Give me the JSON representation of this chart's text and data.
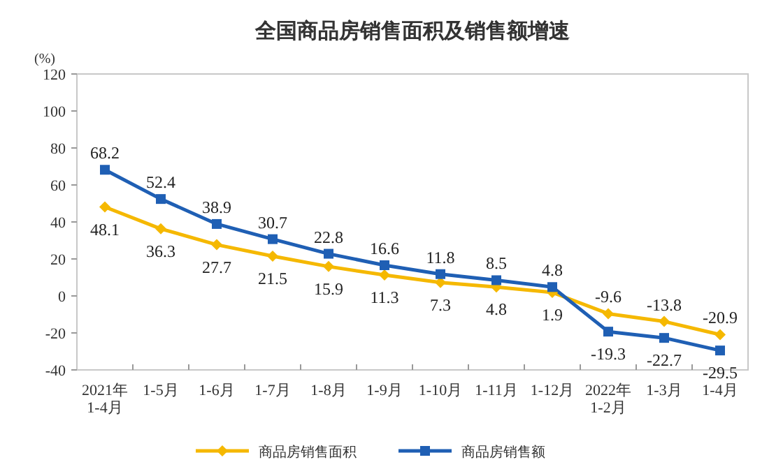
{
  "chart_data": {
    "type": "line",
    "title": "全国商品房销售面积及销售额增速",
    "ylabel": "(%)",
    "categories": [
      "2021年\n1-4月",
      "1-5月",
      "1-6月",
      "1-7月",
      "1-8月",
      "1-9月",
      "1-10月",
      "1-11月",
      "1-12月",
      "2022年\n1-2月",
      "1-3月",
      "1-4月"
    ],
    "series": [
      {
        "name": "商品房销售面积",
        "color": "#f5b800",
        "marker": "diamond",
        "values": [
          48.1,
          36.3,
          27.7,
          21.5,
          15.9,
          11.3,
          7.3,
          4.8,
          1.9,
          -9.6,
          -13.8,
          -20.9
        ]
      },
      {
        "name": "商品房销售额",
        "color": "#1f5fb4",
        "marker": "square",
        "values": [
          68.2,
          52.4,
          38.9,
          30.7,
          22.8,
          16.6,
          11.8,
          8.5,
          4.8,
          -19.3,
          -22.7,
          -29.5
        ]
      }
    ],
    "ylim": [
      -40,
      120
    ],
    "yticks": [
      -40,
      -20,
      0,
      20,
      40,
      60,
      80,
      100,
      120
    ],
    "data_labels": true,
    "legend": "bottom",
    "grid": false,
    "line_style": "solid"
  }
}
